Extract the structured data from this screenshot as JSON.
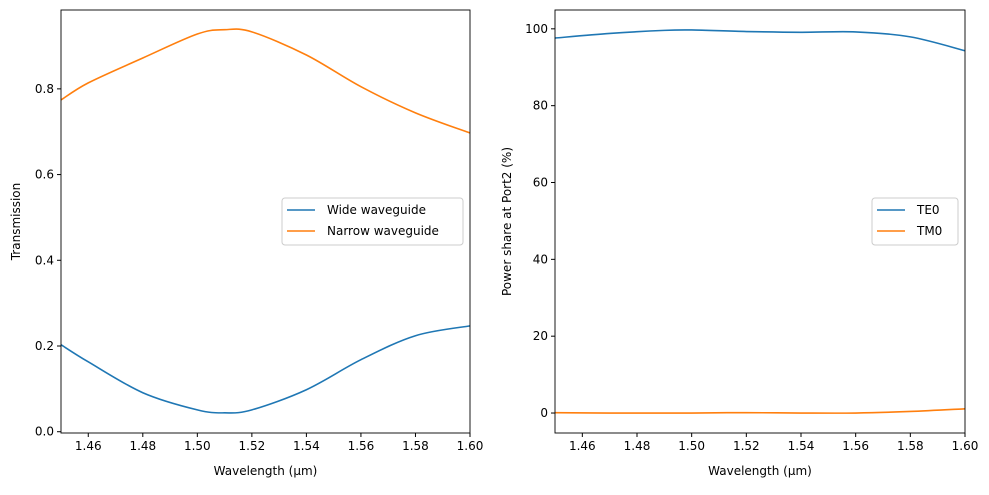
{
  "chart_data": [
    {
      "type": "line",
      "xlabel": "Wavelength ($\\mu m$)",
      "xlabel_display": "Wavelength (μm)",
      "ylabel": "Transmission",
      "xlim": [
        1.45,
        1.6
      ],
      "ylim": [
        -0.003,
        0.984
      ],
      "xticks": [
        "1.46",
        "1.48",
        "1.50",
        "1.52",
        "1.54",
        "1.56",
        "1.58",
        "1.60"
      ],
      "yticks": [
        "0.0",
        "0.2",
        "0.4",
        "0.6",
        "0.8"
      ],
      "grid": false,
      "legend_position": "center-right",
      "x": [
        1.45,
        1.46,
        1.48,
        1.5,
        1.51,
        1.52,
        1.54,
        1.56,
        1.58,
        1.6
      ],
      "series": [
        {
          "name": "Wide waveguide",
          "color": "#1f77b4",
          "values": [
            0.203,
            0.163,
            0.091,
            0.051,
            0.044,
            0.051,
            0.098,
            0.168,
            0.224,
            0.247
          ]
        },
        {
          "name": "Narrow waveguide",
          "color": "#ff7f0e",
          "values": [
            0.774,
            0.814,
            0.872,
            0.928,
            0.938,
            0.933,
            0.879,
            0.805,
            0.744,
            0.697
          ]
        }
      ]
    },
    {
      "type": "line",
      "xlabel": "Wavelength ($\\mu m$)",
      "xlabel_display": "Wavelength (μm)",
      "ylabel": "Power share at Port2 (%)",
      "xlim": [
        1.45,
        1.6
      ],
      "ylim": [
        -5.2,
        104.9
      ],
      "xticks": [
        "1.46",
        "1.48",
        "1.50",
        "1.52",
        "1.54",
        "1.56",
        "1.58",
        "1.60"
      ],
      "yticks": [
        "0",
        "20",
        "40",
        "60",
        "80",
        "100"
      ],
      "grid": false,
      "legend_position": "center-right",
      "x": [
        1.45,
        1.47,
        1.49,
        1.5,
        1.52,
        1.54,
        1.56,
        1.58,
        1.6
      ],
      "series": [
        {
          "name": "TE0",
          "color": "#1f77b4",
          "values": [
            97.6,
            98.8,
            99.6,
            99.7,
            99.3,
            99.1,
            99.2,
            97.9,
            94.3
          ]
        },
        {
          "name": "TM0",
          "color": "#ff7f0e",
          "values": [
            0.1,
            0.0,
            0.0,
            0.0,
            0.1,
            0.0,
            0.0,
            0.4,
            1.1
          ]
        }
      ]
    }
  ]
}
